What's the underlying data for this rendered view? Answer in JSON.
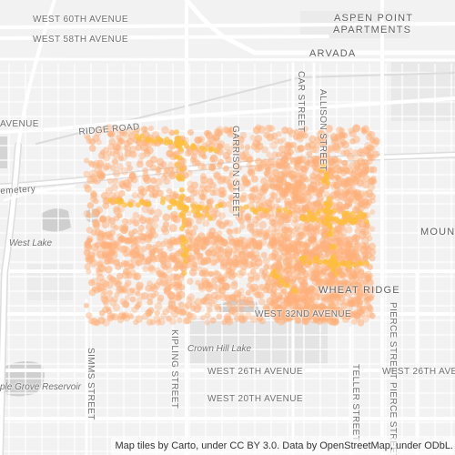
{
  "map": {
    "background_color": "#f2f2f2",
    "road_color": "#ffffff",
    "highway_color": "#dddddd",
    "water_color": "#c8c8c8",
    "park_color": "#e4e4e4",
    "point_color_dim": "#ffb07a",
    "point_color_bright": "#ffbe3d",
    "labels": {
      "west_60th": "WEST 60TH AVENUE",
      "west_58th": "WEST 58TH AVENUE",
      "aspen_point_line1": "ASPEN POINT",
      "aspen_point_line2": "APARTMENTS",
      "arvada": "ARVADA",
      "ridge_road": "RIDGE ROAD",
      "avenue_left": "AVENUE",
      "cemetery": "emetery",
      "car_street": "CAR STREET",
      "allison_street": "ALLISON STREET",
      "garrison_street": "GARRISON STREET",
      "west_lake": "West Lake",
      "moun": "MOUN",
      "wheat_ridge": "WHEAT RIDGE",
      "west_32nd": "WEST 32ND AVENUE",
      "crown_hill_lake": "Crown Hill Lake",
      "kipling_street": "KIPLING STREET",
      "simms_street": "SIMMS STREET",
      "pierce_street": "PIERCE STREET",
      "teller_street": "TELLER STREET",
      "pierce_street_2": "PIERCE STREET",
      "west_26th": "WEST 26TH AVENUE",
      "west_26th_right": "WEST 26TH AVENUE",
      "west_20th": "WEST 20TH AVENUE",
      "maple_grove": "ple Grove Reservoir"
    },
    "attribution": "Map tiles by Carto, under CC BY 3.0. Data by OpenStreetMap, under ODbL."
  }
}
